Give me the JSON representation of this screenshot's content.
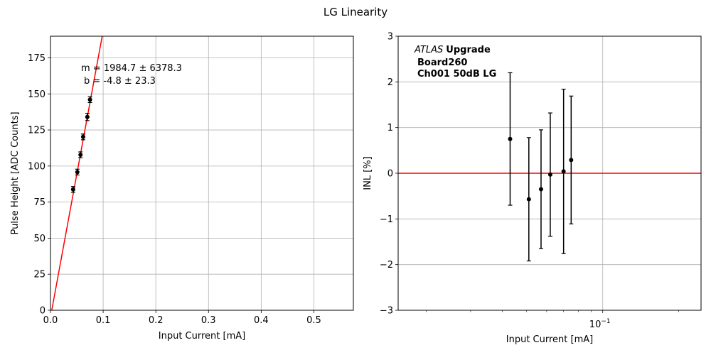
{
  "figure": {
    "title": "LG Linearity"
  },
  "chart_data": [
    {
      "type": "scatter",
      "panel": "left",
      "xlabel": "Input Current [mA]",
      "ylabel": "Pulse Height [ADC Counts]",
      "xlim": [
        0.0,
        0.575
      ],
      "ylim": [
        0,
        190
      ],
      "xticks": [
        "0.0",
        "0.1",
        "0.2",
        "0.3",
        "0.4",
        "0.5"
      ],
      "yticks": [
        "0",
        "25",
        "50",
        "75",
        "100",
        "125",
        "150",
        "175"
      ],
      "grid": true,
      "points": [
        {
          "x": 0.043,
          "y": 83.8,
          "yerr": 2.0
        },
        {
          "x": 0.051,
          "y": 95.8,
          "yerr": 2.0
        },
        {
          "x": 0.057,
          "y": 107.8,
          "yerr": 2.0
        },
        {
          "x": 0.062,
          "y": 120.2,
          "yerr": 2.0
        },
        {
          "x": 0.07,
          "y": 134.0,
          "yerr": 2.5
        },
        {
          "x": 0.075,
          "y": 146.0,
          "yerr": 2.0
        }
      ],
      "fit": {
        "slope": 1984.7,
        "intercept": -4.8,
        "color": "#ff0000",
        "label_m": "m = 1984.7 ± 6378.3",
        "label_b": "b = -4.8 ± 23.3"
      }
    },
    {
      "type": "scatter",
      "panel": "right",
      "xlabel": "Input Current [mA]",
      "ylabel": "INL [%]",
      "xscale": "log",
      "xlim": [
        0.0155,
        0.245
      ],
      "ylim": [
        -3,
        3
      ],
      "yticks": [
        "3",
        "2",
        "1",
        "0",
        "−1",
        "−2",
        "−3"
      ],
      "xtick_major": {
        "value": 0.1,
        "label_base": "10",
        "label_exp": "−1"
      },
      "grid": true,
      "points": [
        {
          "x": 0.043,
          "y": 0.75,
          "yerr": 1.45
        },
        {
          "x": 0.051,
          "y": -0.57,
          "yerr": 1.35
        },
        {
          "x": 0.057,
          "y": -0.35,
          "yerr": 1.3
        },
        {
          "x": 0.062,
          "y": -0.03,
          "yerr": 1.35
        },
        {
          "x": 0.07,
          "y": 0.04,
          "yerr": 1.8
        },
        {
          "x": 0.075,
          "y": 0.29,
          "yerr": 1.4
        }
      ],
      "reference_line": {
        "y": 0,
        "color": "#ff0000"
      },
      "annotation": {
        "atlas": "ATLAS",
        "upgrade": "Upgrade",
        "board": "Board260",
        "channel": "Ch001 50dB LG"
      }
    }
  ]
}
